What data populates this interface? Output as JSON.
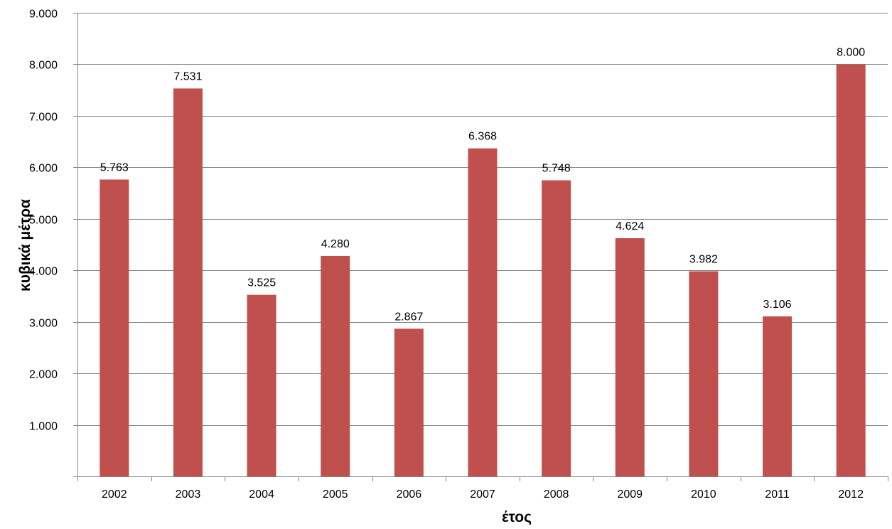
{
  "chart_data": {
    "type": "bar",
    "xlabel": "έτος",
    "ylabel": "κυβικά μέτρα",
    "categories": [
      "2002",
      "2003",
      "2004",
      "2005",
      "2006",
      "2007",
      "2008",
      "2009",
      "2010",
      "2011",
      "2012"
    ],
    "values": [
      5763,
      7531,
      3525,
      4280,
      2867,
      6368,
      5748,
      4624,
      3982,
      3106,
      8000
    ],
    "value_labels": [
      "5.763",
      "7.531",
      "3.525",
      "4.280",
      "2.867",
      "6.368",
      "5.748",
      "4.624",
      "3.982",
      "3.106",
      "8.000"
    ],
    "ylim": [
      0,
      9000
    ],
    "yticks": [
      1000,
      2000,
      3000,
      4000,
      5000,
      6000,
      7000,
      8000,
      9000
    ],
    "ytick_labels": [
      "1.000",
      "2.000",
      "3.000",
      "4.000",
      "5.000",
      "6.000",
      "7.000",
      "8.000",
      "9.000"
    ],
    "grid": true,
    "legend": "none",
    "colors": {
      "bar": "#c0504d",
      "grid": "#868686",
      "axis": "#868686"
    }
  }
}
